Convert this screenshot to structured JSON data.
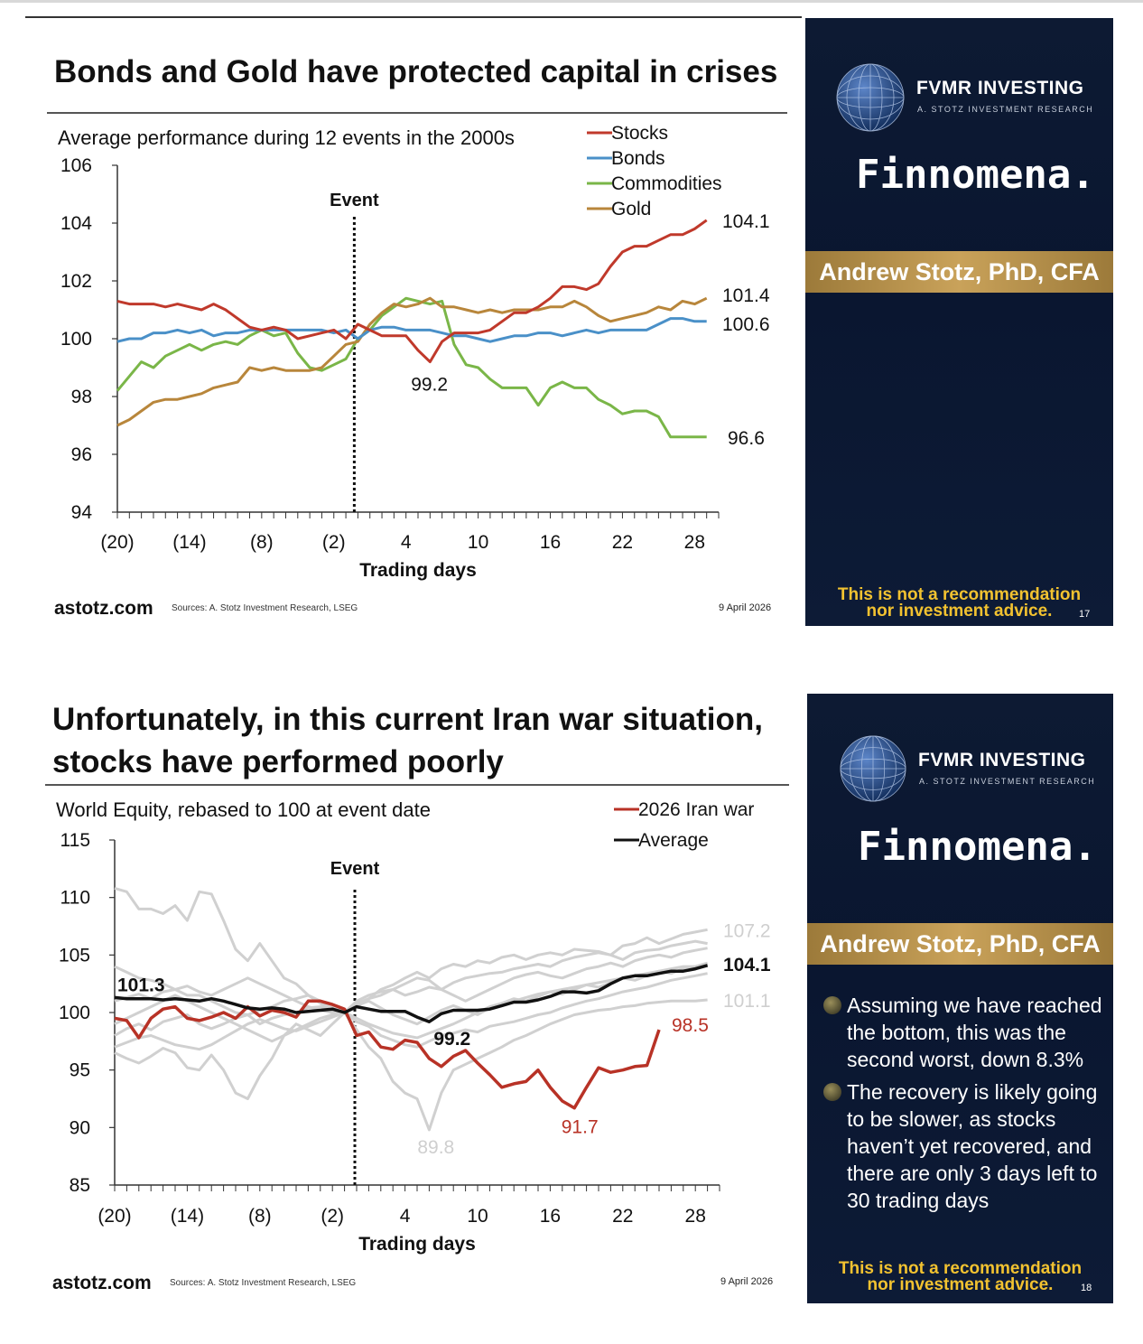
{
  "slide1": {
    "title": "Bonds and Gold have protected capital in crises",
    "subtitle": "Average performance during 12 events in the 2000s",
    "footer": {
      "site": "astotz.com",
      "sources": "Sources: A. Stotz Investment Research, LSEG",
      "date": "9 April 2026"
    },
    "panel": {
      "brand": "FVMR INVESTING",
      "brand_sub": "A. STOTZ INVESTMENT RESEARCH",
      "partner": "Finnomena.",
      "presenter": "Andrew Stotz, PhD, CFA",
      "disclaimer_line1": "This is not a recommendation",
      "disclaimer_line2": "nor investment advice.",
      "page": "17"
    }
  },
  "slide2": {
    "title_line1": "Unfortunately, in this current Iran war situation,",
    "title_line2": "stocks have performed poorly",
    "subtitle": "World Equity, rebased to 100 at event date",
    "footer": {
      "site": "astotz.com",
      "sources": "Sources: A. Stotz Investment Research, LSEG",
      "date": "9 April 2026"
    },
    "panel": {
      "brand": "FVMR INVESTING",
      "brand_sub": "A. STOTZ INVESTMENT RESEARCH",
      "partner": "Finnomena.",
      "presenter": "Andrew Stotz, PhD, CFA",
      "bullets": [
        "Assuming we have reached the bottom, this was the second worst, down 8.3%",
        "The recovery is likely going to be slower, as stocks haven’t yet recovered, and there are only 3 days left to 30 trading days"
      ],
      "disclaimer_line1": "This is not a recommendation",
      "disclaimer_line2": "nor investment advice.",
      "page": "18"
    }
  },
  "chart_data": [
    {
      "type": "line",
      "title": "Average performance during 12 events in the 2000s",
      "xlabel": "Trading days",
      "ylabel": "",
      "xlim": [
        -20,
        30
      ],
      "ylim": [
        94,
        106
      ],
      "yticks": [
        94,
        96,
        98,
        100,
        102,
        104,
        106
      ],
      "xtick_values": [
        -20,
        -14,
        -8,
        -2,
        4,
        10,
        16,
        22,
        28
      ],
      "xtick_labels": [
        "(20)",
        "(14)",
        "(8)",
        "(2)",
        "4",
        "10",
        "16",
        "22",
        "28"
      ],
      "event_x": 0,
      "event_label": "Event",
      "legend_position": "top-right",
      "series": [
        {
          "name": "Stocks",
          "color": "#c0392b",
          "values": [
            101.3,
            101.2,
            101.2,
            101.2,
            101.1,
            101.2,
            101.1,
            101.0,
            101.2,
            101.0,
            100.7,
            100.4,
            100.3,
            100.4,
            100.3,
            100.0,
            100.1,
            100.2,
            100.3,
            100.0,
            100.5,
            100.3,
            100.1,
            100.1,
            100.1,
            99.6,
            99.2,
            99.9,
            100.2,
            100.2,
            100.2,
            100.3,
            100.6,
            100.9,
            100.9,
            101.1,
            101.4,
            101.8,
            101.8,
            101.7,
            101.9,
            102.5,
            103.0,
            103.2,
            103.2,
            103.4,
            103.6,
            103.6,
            103.8,
            104.1
          ]
        },
        {
          "name": "Bonds",
          "color": "#4a90c8",
          "values": [
            99.9,
            100.0,
            100.0,
            100.2,
            100.2,
            100.3,
            100.2,
            100.3,
            100.1,
            100.2,
            100.2,
            100.3,
            100.3,
            100.3,
            100.3,
            100.3,
            100.3,
            100.3,
            100.2,
            100.3,
            100.0,
            100.3,
            100.4,
            100.4,
            100.3,
            100.3,
            100.3,
            100.2,
            100.1,
            100.1,
            100.0,
            99.9,
            100.0,
            100.1,
            100.1,
            100.2,
            100.2,
            100.1,
            100.2,
            100.3,
            100.2,
            100.3,
            100.3,
            100.3,
            100.3,
            100.5,
            100.7,
            100.7,
            100.6,
            100.6
          ]
        },
        {
          "name": "Commodities",
          "color": "#7ab648",
          "values": [
            98.2,
            98.7,
            99.2,
            99.0,
            99.4,
            99.6,
            99.8,
            99.6,
            99.8,
            99.9,
            99.8,
            100.1,
            100.3,
            100.1,
            100.2,
            99.5,
            99.0,
            98.9,
            99.1,
            99.3,
            100.0,
            100.3,
            100.8,
            101.1,
            101.4,
            101.3,
            101.2,
            101.3,
            99.8,
            99.1,
            99.0,
            98.6,
            98.3,
            98.3,
            98.3,
            97.7,
            98.3,
            98.5,
            98.3,
            98.3,
            97.9,
            97.7,
            97.4,
            97.5,
            97.5,
            97.3,
            96.6,
            96.6,
            96.6,
            96.6
          ]
        },
        {
          "name": "Gold",
          "color": "#b8863b",
          "values": [
            97.0,
            97.2,
            97.5,
            97.8,
            97.9,
            97.9,
            98.0,
            98.1,
            98.3,
            98.4,
            98.5,
            99.0,
            98.9,
            99.0,
            98.9,
            98.9,
            98.9,
            99.0,
            99.4,
            99.8,
            99.9,
            100.5,
            100.9,
            101.2,
            101.1,
            101.2,
            101.4,
            101.1,
            101.1,
            101.0,
            100.9,
            101.0,
            100.9,
            101.0,
            101.0,
            101.0,
            101.1,
            101.1,
            101.3,
            101.1,
            100.8,
            100.6,
            100.7,
            100.8,
            100.9,
            101.1,
            101.0,
            101.3,
            101.2,
            101.4
          ]
        }
      ],
      "annotations": [
        {
          "text": "104.1",
          "series": "Stocks",
          "x": 30
        },
        {
          "text": "101.4",
          "series": "Gold",
          "x": 30
        },
        {
          "text": "100.6",
          "series": "Bonds",
          "x": 30
        },
        {
          "text": "96.6",
          "series": "Commodities",
          "x": 30
        },
        {
          "text": "99.2",
          "series": "Stocks",
          "x": 7
        }
      ]
    },
    {
      "type": "line",
      "title": "World Equity, rebased to 100 at event date",
      "xlabel": "Trading days",
      "ylabel": "",
      "xlim": [
        -20,
        30
      ],
      "ylim": [
        85,
        115
      ],
      "yticks": [
        85,
        90,
        95,
        100,
        105,
        110,
        115
      ],
      "xtick_values": [
        -20,
        -14,
        -8,
        -2,
        4,
        10,
        16,
        22,
        28
      ],
      "xtick_labels": [
        "(20)",
        "(14)",
        "(8)",
        "(2)",
        "4",
        "10",
        "16",
        "22",
        "28"
      ],
      "event_x": 0,
      "event_label": "Event",
      "legend_position": "top-right",
      "series": [
        {
          "name": "2026 Iran war",
          "color": "#b83226",
          "values": [
            99.5,
            99.3,
            97.8,
            99.5,
            100.3,
            100.5,
            99.5,
            99.3,
            99.6,
            100.0,
            99.5,
            100.5,
            99.7,
            100.2,
            100.0,
            99.6,
            101.0,
            101.0,
            100.7,
            100.3,
            98.0,
            98.3,
            97.0,
            96.8,
            97.6,
            97.4,
            96.0,
            95.3,
            96.2,
            96.7,
            95.6,
            94.6,
            93.5,
            93.8,
            94.0,
            95.0,
            93.5,
            92.3,
            91.7,
            93.5,
            95.2,
            94.8,
            95.0,
            95.3,
            95.4,
            98.5
          ]
        },
        {
          "name": "Average",
          "color": "#111111",
          "values": [
            101.3,
            101.2,
            101.2,
            101.2,
            101.1,
            101.2,
            101.1,
            101.0,
            101.2,
            101.0,
            100.7,
            100.4,
            100.3,
            100.4,
            100.3,
            100.0,
            100.1,
            100.2,
            100.3,
            100.0,
            100.5,
            100.3,
            100.1,
            100.1,
            100.1,
            99.6,
            99.2,
            99.9,
            100.2,
            100.2,
            100.2,
            100.3,
            100.6,
            100.9,
            100.9,
            101.1,
            101.4,
            101.8,
            101.8,
            101.7,
            101.9,
            102.5,
            103.0,
            103.2,
            103.2,
            103.4,
            103.6,
            103.6,
            103.8,
            104.1
          ]
        }
      ],
      "background_series_color": "#d0d0d0",
      "background_series": [
        [
          110.8,
          110.5,
          109.0,
          109.0,
          108.6,
          109.3,
          108.0,
          110.5,
          110.3,
          108.0,
          105.5,
          104.5,
          106.0,
          104.5,
          103.0,
          102.5,
          101.5,
          100.8,
          100.2,
          100.0,
          100.5,
          101.2,
          102.0,
          102.4,
          103.0,
          103.5,
          103.0,
          103.8,
          104.2,
          104.0,
          104.5,
          104.3,
          104.8,
          105.0,
          104.6,
          105.0,
          105.2,
          105.0,
          105.5,
          105.4,
          105.3,
          105.0,
          105.8,
          106.0,
          106.5,
          106.0,
          106.4,
          106.8,
          107.0,
          107.2
        ],
        [
          96.5,
          96.0,
          95.6,
          96.2,
          96.9,
          96.5,
          95.2,
          95.0,
          96.3,
          95.0,
          93.0,
          92.5,
          94.5,
          96.0,
          98.0,
          99.0,
          98.5,
          98.0,
          99.0,
          100.0,
          98.5,
          97.0,
          96.0,
          94.0,
          93.0,
          92.5,
          89.8,
          93.0,
          95.0,
          95.5,
          96.0,
          96.5,
          97.0,
          97.6,
          98.0,
          98.5,
          99.0,
          99.4,
          99.8,
          100.0,
          100.2,
          100.3,
          100.5,
          100.6,
          100.8,
          100.9,
          101.0,
          101.0,
          101.0,
          101.1
        ],
        [
          104.0,
          103.5,
          103.0,
          102.8,
          102.5,
          102.0,
          101.5,
          101.5,
          101.0,
          100.5,
          100.0,
          99.8,
          99.0,
          99.5,
          99.8,
          100.0,
          100.4,
          100.5,
          100.2,
          100.0,
          101.0,
          101.5,
          101.8,
          102.0,
          101.5,
          101.8,
          102.2,
          102.0,
          102.6,
          103.0,
          103.2,
          103.4,
          103.5,
          103.8,
          104.0,
          104.2,
          104.0,
          104.5,
          104.8,
          105.0,
          105.2,
          105.0,
          104.6,
          105.2,
          105.4,
          105.5,
          105.8,
          106.0,
          106.2,
          106.0
        ],
        [
          98.0,
          98.6,
          99.0,
          98.5,
          99.2,
          99.5,
          99.8,
          99.0,
          98.6,
          99.0,
          99.5,
          99.8,
          100.2,
          100.5,
          101.0,
          101.2,
          101.5,
          101.0,
          100.5,
          100.0,
          99.2,
          98.8,
          98.0,
          97.6,
          97.2,
          97.0,
          97.5,
          98.0,
          98.2,
          98.5,
          98.3,
          98.8,
          99.0,
          99.2,
          99.5,
          99.8,
          100.0,
          100.4,
          100.7,
          101.0,
          101.2,
          101.5,
          101.8,
          102.0,
          102.2,
          102.5,
          102.8,
          103.0,
          103.2,
          103.4
        ],
        [
          101.0,
          101.3,
          101.6,
          101.2,
          101.8,
          102.0,
          102.3,
          101.8,
          101.5,
          102.0,
          102.5,
          103.0,
          102.5,
          102.0,
          101.5,
          101.0,
          100.5,
          100.2,
          100.0,
          100.0,
          100.8,
          101.2,
          101.5,
          102.0,
          102.5,
          103.0,
          102.8,
          102.0,
          101.5,
          101.0,
          101.5,
          102.0,
          102.5,
          103.0,
          103.3,
          103.5,
          103.2,
          103.0,
          103.4,
          103.8,
          104.0,
          104.3,
          104.0,
          104.5,
          104.8,
          105.0,
          104.8,
          105.2,
          105.4,
          105.6
        ],
        [
          99.0,
          99.5,
          100.0,
          100.5,
          101.0,
          101.5,
          101.0,
          100.5,
          100.0,
          99.5,
          99.0,
          98.5,
          98.0,
          97.5,
          98.0,
          98.5,
          99.0,
          99.5,
          99.8,
          100.0,
          99.5,
          99.0,
          98.6,
          98.2,
          98.0,
          97.8,
          98.2,
          98.6,
          99.0,
          99.5,
          100.0,
          100.5,
          100.8,
          101.0,
          101.3,
          101.6,
          101.8,
          102.0,
          102.2,
          102.4,
          102.6,
          102.8,
          103.0,
          103.2,
          103.4,
          103.6,
          103.8,
          104.0,
          104.0,
          104.2
        ],
        [
          97.0,
          97.4,
          97.8,
          98.0,
          97.6,
          97.2,
          97.0,
          96.8,
          97.2,
          97.8,
          98.4,
          99.0,
          99.4,
          99.0,
          98.6,
          98.4,
          98.8,
          99.2,
          99.6,
          100.0,
          100.6,
          101.0,
          100.4,
          99.8,
          99.4,
          99.0,
          99.6,
          100.2,
          100.6,
          100.2,
          99.8,
          100.4,
          100.8,
          101.2,
          101.0,
          101.4,
          101.8,
          101.6,
          102.0,
          102.4,
          102.2,
          102.6,
          103.0,
          102.8,
          103.2,
          103.6,
          103.4,
          103.8,
          104.0,
          104.3
        ]
      ],
      "annotations": [
        {
          "text": "107.2",
          "color": "#cfcfcf",
          "x": 30
        },
        {
          "text": "104.1",
          "series": "Average",
          "x": 30
        },
        {
          "text": "101.1",
          "color": "#cfcfcf",
          "x": 30
        },
        {
          "text": "98.5",
          "series": "2026 Iran war",
          "x": 25
        },
        {
          "text": "91.7",
          "series": "2026 Iran war",
          "x": 18
        },
        {
          "text": "101.3",
          "series": "Average",
          "x": -20
        },
        {
          "text": "99.2",
          "series": "Average",
          "x": 7
        },
        {
          "text": "89.8",
          "color": "#cfcfcf",
          "x": 7
        }
      ]
    }
  ]
}
